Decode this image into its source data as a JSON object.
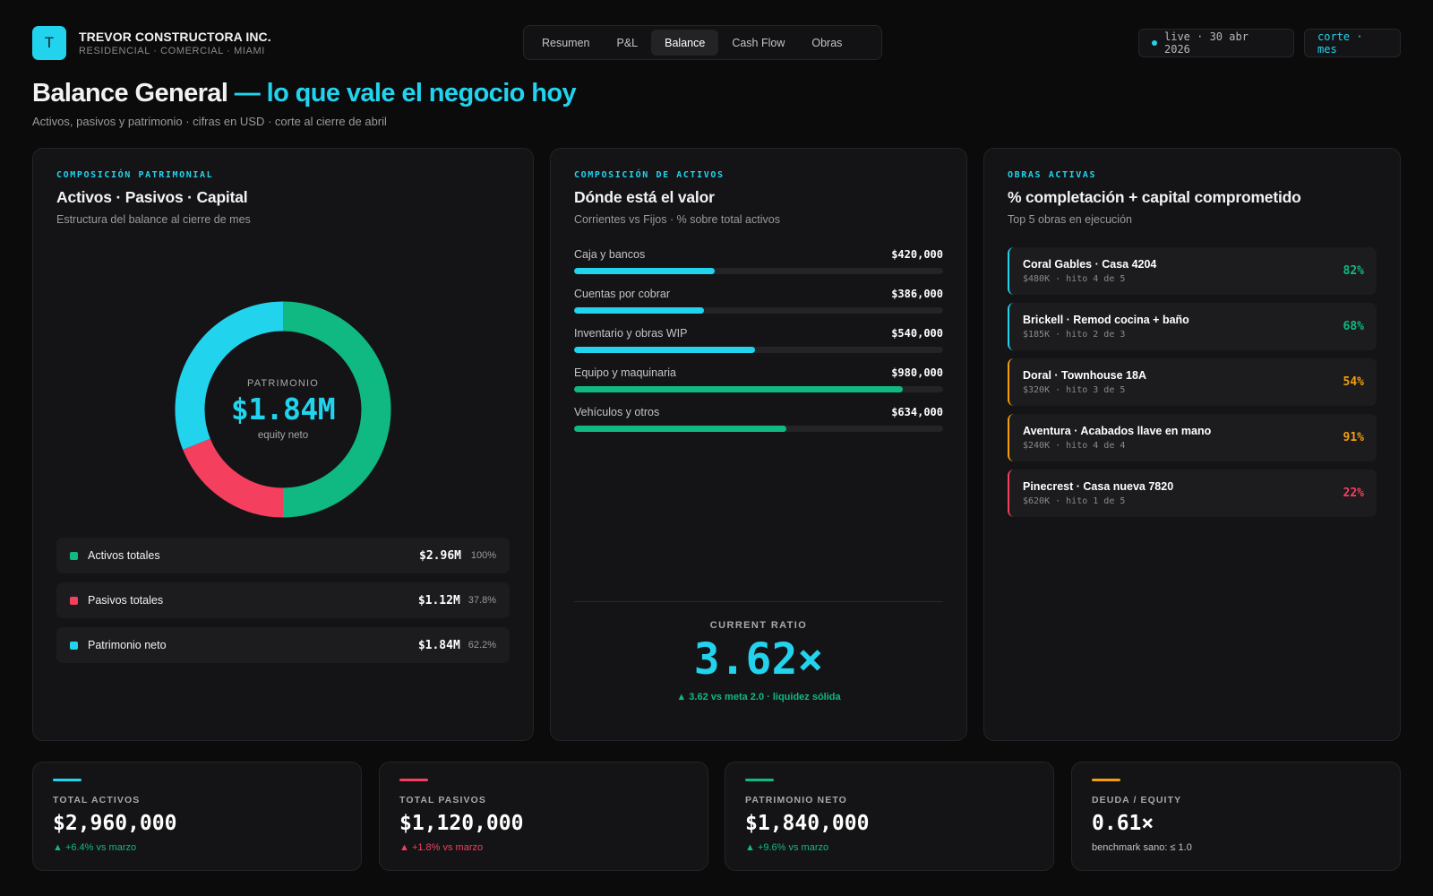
{
  "brand": {
    "logo_letter": "T",
    "name": "TREVOR CONSTRUCTORA INC.",
    "subtitle": "RESIDENCIAL · COMERCIAL · MIAMI"
  },
  "nav": {
    "tabs": [
      {
        "label": "Resumen"
      },
      {
        "label": "P&L"
      },
      {
        "label": "Balance",
        "active": true
      },
      {
        "label": "Cash Flow"
      },
      {
        "label": "Obras"
      }
    ]
  },
  "status": {
    "live": "live · 30 abr 2026",
    "corte": "corte · mes"
  },
  "page": {
    "title": "Balance General",
    "title_accent": "— lo que vale el negocio hoy",
    "subtitle": "Activos, pasivos y patrimonio · cifras en USD · corte al cierre de abril"
  },
  "colors": {
    "accent": "#22d3ee",
    "green": "#10b981",
    "red": "#f43f5e",
    "amber": "#f59e0b"
  },
  "composicion": {
    "eyebrow": "COMPOSICIÓN PATRIMONIAL",
    "title": "Activos · Pasivos · Capital",
    "subtitle": "Estructura del balance al cierre de mes",
    "donut": {
      "center_label": "PATRIMONIO",
      "center_value": "$1.84M",
      "center_caption": "equity neto"
    },
    "legend": [
      {
        "name": "Activos totales",
        "value": "$2.96M",
        "pct": "100%",
        "color": "#10b981"
      },
      {
        "name": "Pasivos totales",
        "value": "$1.12M",
        "pct": "37.8%",
        "color": "#f43f5e"
      },
      {
        "name": "Patrimonio neto",
        "value": "$1.84M",
        "pct": "62.2%",
        "color": "#22d3ee"
      }
    ]
  },
  "chart_data": {
    "type": "pie",
    "categories": [
      "Activos totales",
      "Pasivos totales",
      "Patrimonio neto"
    ],
    "values": [
      2.96,
      1.12,
      1.84
    ],
    "colors": [
      "#10b981",
      "#f43f5e",
      "#22d3ee"
    ]
  },
  "activos": {
    "eyebrow": "COMPOSICIÓN DE ACTIVOS",
    "title": "Dónde está el valor",
    "subtitle": "Corrientes vs Fijos · % sobre total activos",
    "items": [
      {
        "label": "Caja y bancos",
        "value": "$420,000",
        "amount": 420000,
        "color": "#22d3ee"
      },
      {
        "label": "Cuentas por cobrar",
        "value": "$386,000",
        "amount": 386000,
        "color": "#22d3ee"
      },
      {
        "label": "Inventario y obras WIP",
        "value": "$540,000",
        "amount": 540000,
        "color": "#22d3ee"
      },
      {
        "label": "Equipo y maquinaria",
        "value": "$980,000",
        "amount": 980000,
        "color": "#10b981"
      },
      {
        "label": "Vehículos y otros",
        "value": "$634,000",
        "amount": 634000,
        "color": "#10b981"
      }
    ],
    "ratio": {
      "label": "CURRENT RATIO",
      "value": "3.62×",
      "note": "▲ 3.62 vs meta 2.0 · liquidez sólida"
    }
  },
  "obras": {
    "eyebrow": "OBRAS ACTIVAS",
    "title": "% completación + capital comprometido",
    "subtitle": "Top 5 obras en ejecución",
    "items": [
      {
        "name": "Coral Gables · Casa 4204",
        "meta": "$480K · hito 4 de 5",
        "pct": "82%",
        "color": "#10b981",
        "border": "#22d3ee"
      },
      {
        "name": "Brickell · Remod cocina + baño",
        "meta": "$185K · hito 2 de 3",
        "pct": "68%",
        "color": "#10b981",
        "border": "#22d3ee"
      },
      {
        "name": "Doral · Townhouse 18A",
        "meta": "$320K · hito 3 de 5",
        "pct": "54%",
        "color": "#f59e0b",
        "border": "#f59e0b"
      },
      {
        "name": "Aventura · Acabados llave en mano",
        "meta": "$240K · hito 4 de 4",
        "pct": "91%",
        "color": "#f59e0b",
        "border": "#f59e0b"
      },
      {
        "name": "Pinecrest · Casa nueva 7820",
        "meta": "$620K · hito 1 de 5",
        "pct": "22%",
        "color": "#f43f5e",
        "border": "#f43f5e"
      }
    ]
  },
  "kpis": [
    {
      "label": "TOTAL ACTIVOS",
      "value": "$2,960,000",
      "delta": "▲ +6.4% vs marzo",
      "line_color": "#22d3ee",
      "delta_color": "#10b981"
    },
    {
      "label": "TOTAL PASIVOS",
      "value": "$1,120,000",
      "delta": "▲ +1.8% vs marzo",
      "line_color": "#f43f5e",
      "delta_color": "#f43f5e"
    },
    {
      "label": "PATRIMONIO NETO",
      "value": "$1,840,000",
      "delta": "▲ +9.6% vs marzo",
      "line_color": "#10b981",
      "delta_color": "#10b981"
    },
    {
      "label": "DEUDA / EQUITY",
      "value": "0.61×",
      "delta": "benchmark sano: ≤ 1.0",
      "line_color": "#f59e0b",
      "delta_color": "#c4c4c8"
    }
  ]
}
